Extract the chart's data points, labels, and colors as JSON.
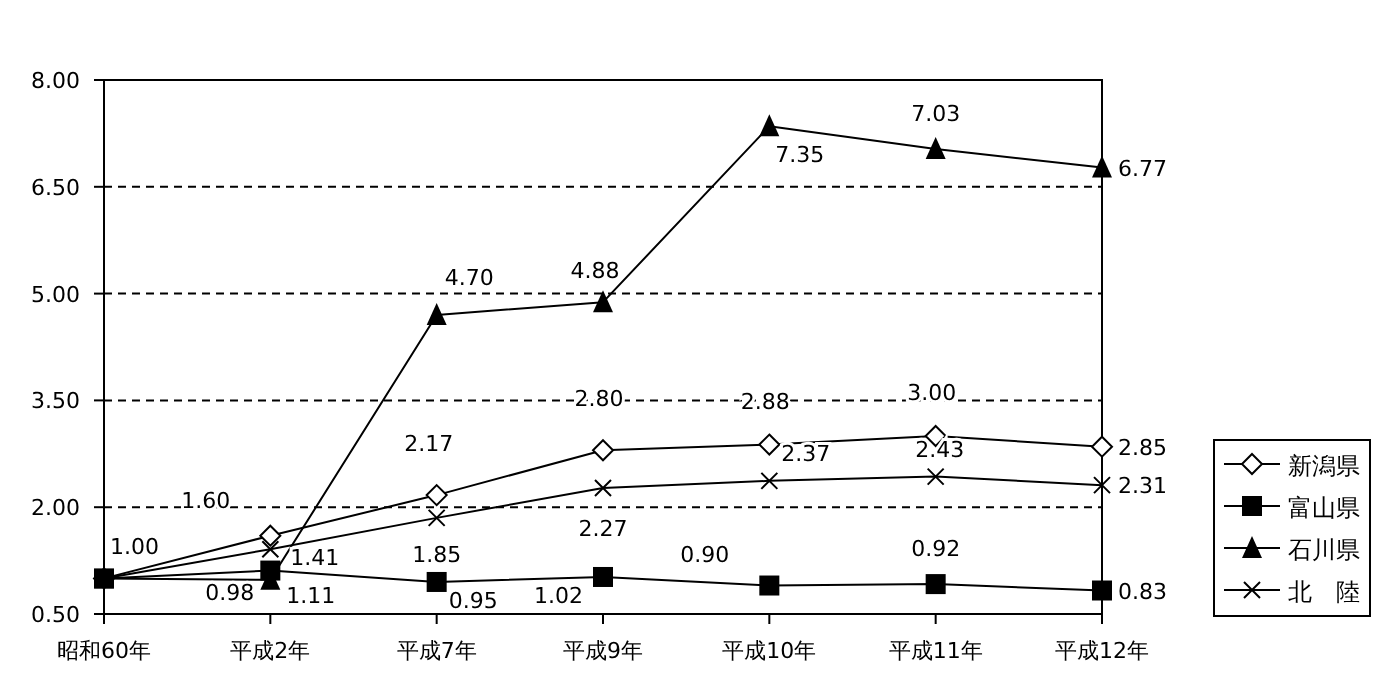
{
  "chart_data": {
    "type": "line",
    "categories": [
      "昭和60年",
      "平成2年",
      "平成7年",
      "平成9年",
      "平成10年",
      "平成11年",
      "平成12年"
    ],
    "series": [
      {
        "name": "新潟県",
        "color": "#000000",
        "marker": "diamond",
        "values": [
          1.0,
          1.6,
          2.17,
          2.8,
          2.88,
          3.0,
          2.85
        ],
        "value_labels": [
          "1.00",
          "1.60",
          "2.17",
          "2.80",
          "2.88",
          "3.00",
          "2.85"
        ]
      },
      {
        "name": "富山県",
        "color": "#000000",
        "marker": "square",
        "values": [
          1.0,
          1.11,
          0.95,
          1.02,
          0.9,
          0.92,
          0.83
        ],
        "value_labels": [
          null,
          "1.11",
          "0.95",
          "1.02",
          "0.90",
          "0.92",
          "0.83"
        ]
      },
      {
        "name": "石川県",
        "color": "#000000",
        "marker": "triangle",
        "values": [
          1.0,
          0.98,
          4.7,
          4.88,
          7.35,
          7.03,
          6.77
        ],
        "value_labels": [
          null,
          "0.98",
          "4.70",
          "4.88",
          "7.35",
          "7.03",
          "6.77"
        ]
      },
      {
        "name": "北　陸",
        "color": "#000000",
        "marker": "cross",
        "values": [
          1.0,
          1.41,
          1.85,
          2.27,
          2.37,
          2.43,
          2.31
        ],
        "value_labels": [
          null,
          "1.41",
          "1.85",
          "2.27",
          "2.37",
          "2.43",
          "2.31"
        ]
      }
    ],
    "ylim": [
      0.5,
      8.0
    ],
    "yticks": [
      {
        "value": 0.5,
        "label": "0.50"
      },
      {
        "value": 2.0,
        "label": "2.00"
      },
      {
        "value": 3.5,
        "label": "3.50"
      },
      {
        "value": 5.0,
        "label": "5.00"
      },
      {
        "value": 6.5,
        "label": "6.50"
      },
      {
        "value": 8.0,
        "label": "8.00"
      }
    ],
    "grid": "y",
    "legend": "right",
    "line_style": "solid"
  }
}
